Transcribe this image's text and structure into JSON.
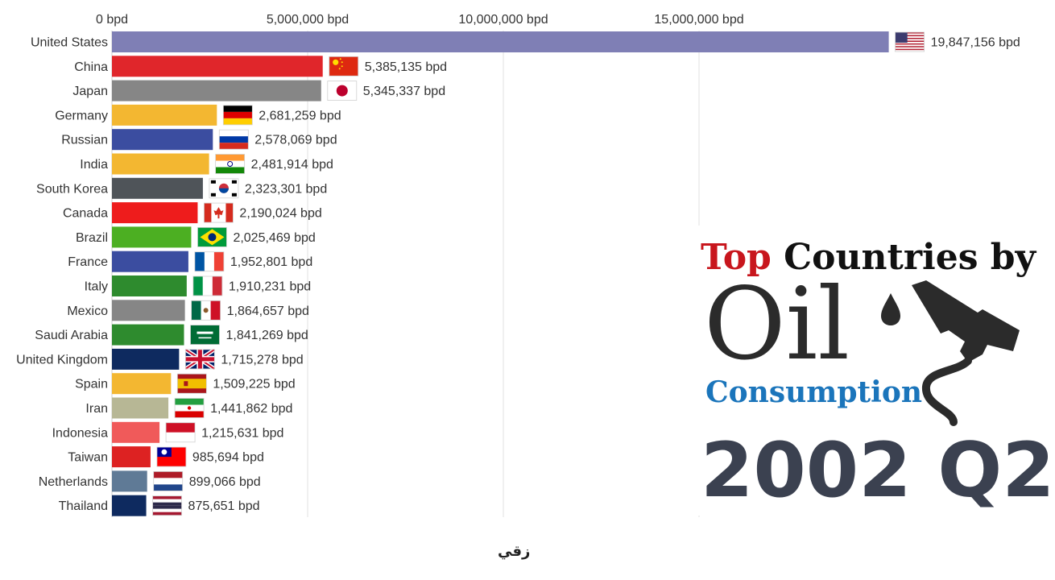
{
  "chart_data": {
    "type": "bar",
    "orientation": "horizontal",
    "unit": "bpd",
    "xlim": [
      0,
      20000000
    ],
    "x_ticks": [
      0,
      5000000,
      10000000,
      15000000
    ],
    "x_tick_labels": [
      "0 bpd",
      "5,000,000 bpd",
      "10,000,000 bpd",
      "15,000,000 bpd"
    ],
    "grid": true,
    "categories": [
      "United States",
      "China",
      "Japan",
      "Germany",
      "Russian",
      "India",
      "South Korea",
      "Canada",
      "Brazil",
      "France",
      "Italy",
      "Mexico",
      "Saudi Arabia",
      "United Kingdom",
      "Spain",
      "Iran",
      "Indonesia",
      "Taiwan",
      "Netherlands",
      "Thailand"
    ],
    "values": [
      19847156,
      5385135,
      5345337,
      2681259,
      2578069,
      2481914,
      2323301,
      2190024,
      2025469,
      1952801,
      1910231,
      1864657,
      1841269,
      1715278,
      1509225,
      1441862,
      1215631,
      985694,
      899066,
      875651
    ],
    "value_labels": [
      "19,847,156 bpd",
      "5,385,135 bpd",
      "5,345,337 bpd",
      "2,681,259 bpd",
      "2,578,069 bpd",
      "2,481,914 bpd",
      "2,323,301 bpd",
      "2,190,024 bpd",
      "2,025,469 bpd",
      "1,952,801 bpd",
      "1,910,231 bpd",
      "1,864,657 bpd",
      "1,841,269 bpd",
      "1,715,278 bpd",
      "1,509,225 bpd",
      "1,441,862 bpd",
      "1,215,631 bpd",
      "985,694 bpd",
      "899,066 bpd",
      "875,651 bpd"
    ],
    "bar_colors": [
      "#7f7fb5",
      "#e0262b",
      "#868686",
      "#f3b731",
      "#3b4da0",
      "#f3b731",
      "#4f5459",
      "#ee1c1c",
      "#4caf22",
      "#3b4da0",
      "#2e8b2e",
      "#868686",
      "#2e8b2e",
      "#0e2a5f",
      "#f3b731",
      "#b7b795",
      "#f05a5a",
      "#dd2222",
      "#5f7a96",
      "#0e2a5f"
    ],
    "flags": [
      "us",
      "cn",
      "jp",
      "de",
      "ru",
      "in",
      "kr",
      "ca",
      "br",
      "fr",
      "it",
      "mx",
      "sa",
      "gb",
      "es",
      "ir",
      "id",
      "tw",
      "nl",
      "th"
    ]
  },
  "title": {
    "word_top": "Top",
    "word_rest": "Countries by",
    "word_oil": "Oil",
    "word_consumption": "Consumption",
    "period": "2002 Q2",
    "colors": {
      "top": "#c8161d",
      "oil": "#2b2b2b",
      "consumption": "#1b75bb",
      "period": "#3b4150"
    }
  },
  "icons": {
    "pump": "fuel-pump-icon",
    "drop": "oil-drop-icon"
  },
  "watermark": "زقي"
}
